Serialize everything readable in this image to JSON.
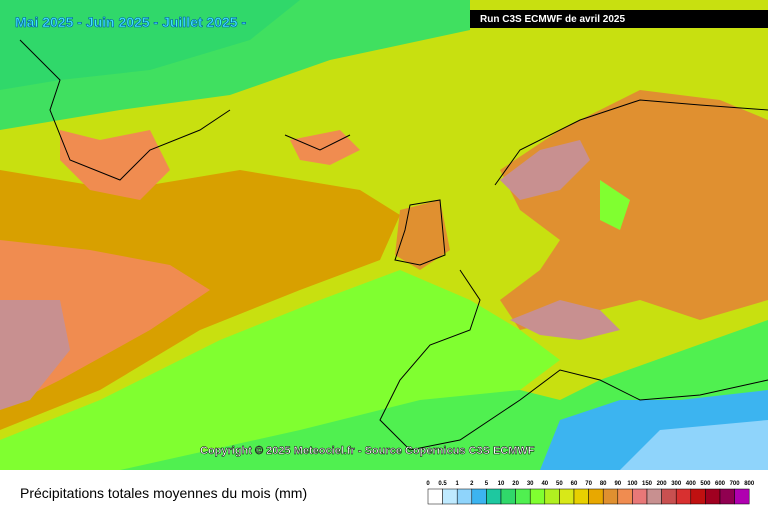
{
  "header": {
    "period": "Mai 2025 - Juin 2025 - Juillet 2025 -",
    "run": "Run C3S ECMWF de avril 2025"
  },
  "copyright": "Copyright © 2025 Meteociel.fr - Source Copernicus C3S ECMWF",
  "caption": "Précipitations totales moyennes du mois (mm)",
  "legend": {
    "labels": [
      0,
      0.5,
      1,
      2,
      5,
      10,
      20,
      30,
      40,
      50,
      60,
      70,
      80,
      90,
      100,
      150,
      200,
      300,
      400,
      500,
      600,
      700,
      800
    ],
    "colors": [
      "#ffffff",
      "#bfeaff",
      "#8fd4fb",
      "#3cb4f0",
      "#1ec8a0",
      "#30d86a",
      "#50f050",
      "#80ff30",
      "#b0f020",
      "#d8e818",
      "#e8d000",
      "#e8a800",
      "#e09030",
      "#f08c50",
      "#e87878",
      "#c89090",
      "#c85050",
      "#d83030",
      "#c01010",
      "#a00020",
      "#900050",
      "#b000b0"
    ]
  }
}
